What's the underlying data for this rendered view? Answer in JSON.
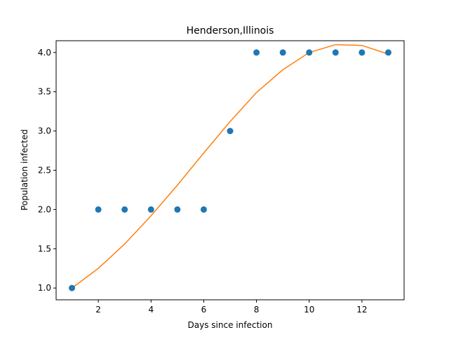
{
  "chart_data": {
    "type": "scatter",
    "title": "Henderson,Illinois",
    "xlabel": "Days since infection",
    "ylabel": "Population infected",
    "xlim": [
      0.4,
      13.6
    ],
    "ylim": [
      0.85,
      4.15
    ],
    "xticks": [
      2,
      4,
      6,
      8,
      10,
      12
    ],
    "yticks": [
      1.0,
      1.5,
      2.0,
      2.5,
      3.0,
      3.5,
      4.0
    ],
    "xtick_labels": [
      "2",
      "4",
      "6",
      "8",
      "10",
      "12"
    ],
    "ytick_labels": [
      "1.0",
      "1.5",
      "2.0",
      "2.5",
      "3.0",
      "3.5",
      "4.0"
    ],
    "grid": false,
    "series": [
      {
        "type": "scatter",
        "color": "#1f77b4",
        "x": [
          1,
          2,
          3,
          4,
          5,
          6,
          7,
          8,
          9,
          10,
          11,
          12,
          13
        ],
        "y": [
          1,
          2,
          2,
          2,
          2,
          2,
          3,
          4,
          4,
          4,
          4,
          4,
          4
        ]
      },
      {
        "type": "line",
        "color": "#ff7f0e",
        "x": [
          1,
          2,
          3,
          4,
          5,
          6,
          7,
          8,
          9,
          10,
          11,
          12,
          13
        ],
        "y": [
          1.0,
          1.25,
          1.56,
          1.92,
          2.31,
          2.72,
          3.12,
          3.49,
          3.78,
          4.0,
          4.1,
          4.09,
          3.98
        ]
      }
    ]
  }
}
